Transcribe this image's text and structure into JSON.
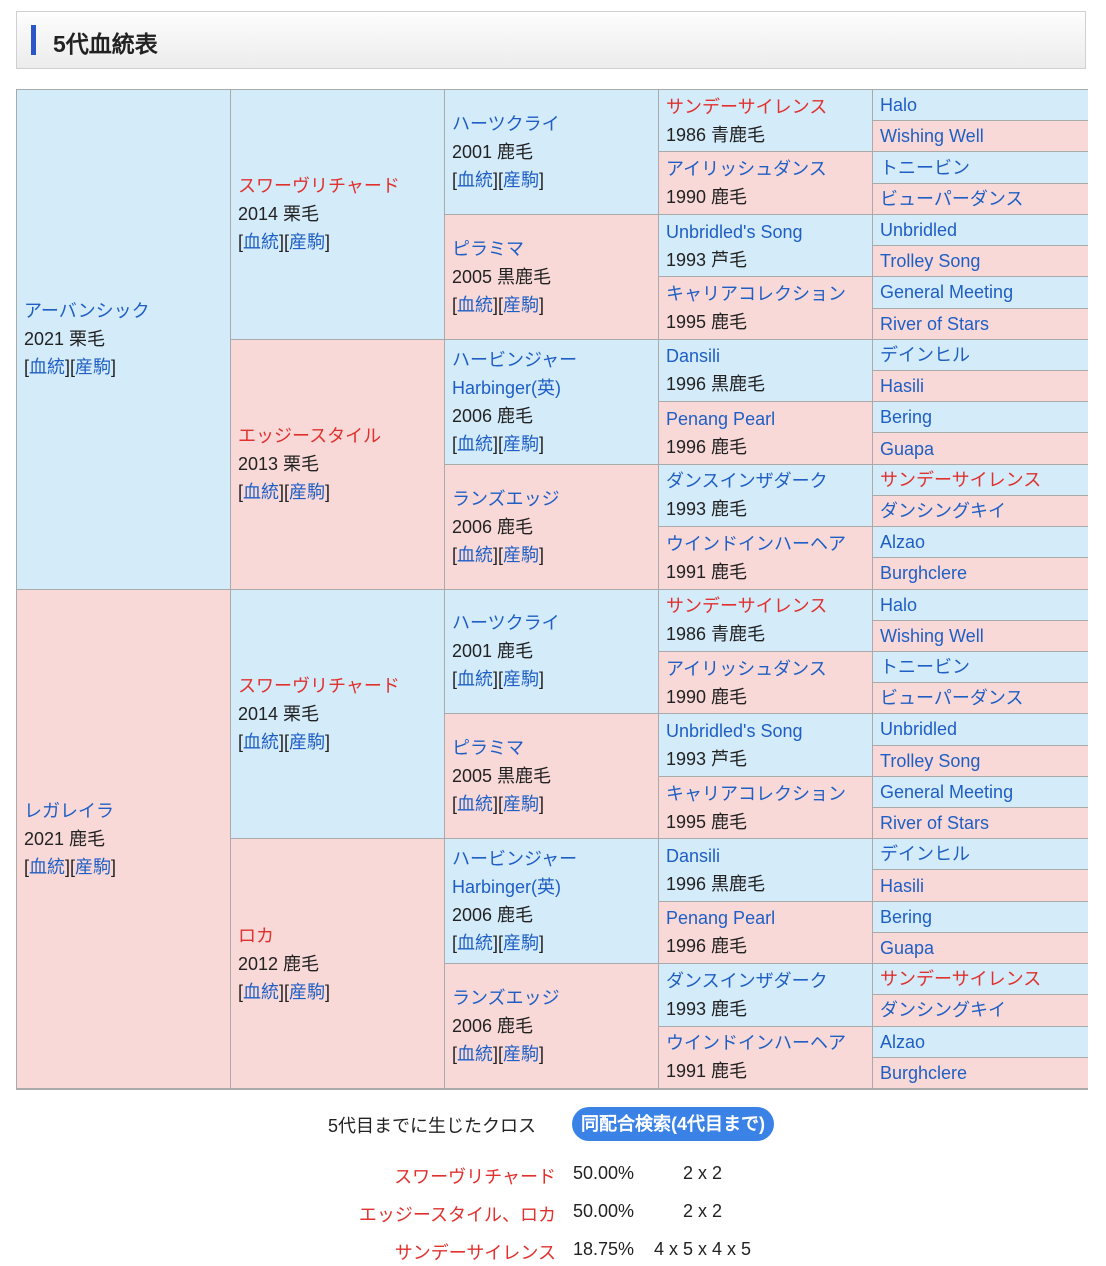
{
  "header": {
    "title": "5代血統表"
  },
  "links": [
    "血統",
    "産駒"
  ],
  "gen1": [
    {
      "name": "アーバンシック",
      "info": "2021 栗毛",
      "sex": "m",
      "color": "blue"
    },
    {
      "name": "レガレイラ",
      "info": "2021 鹿毛",
      "sex": "f",
      "color": "blue"
    }
  ],
  "gen2": [
    {
      "name": "スワーヴリチャード",
      "info": "2014 栗毛",
      "sex": "m",
      "color": "red"
    },
    {
      "name": "エッジースタイル",
      "info": "2013 栗毛",
      "sex": "f",
      "color": "red"
    },
    {
      "name": "スワーヴリチャード",
      "info": "2014 栗毛",
      "sex": "m",
      "color": "red"
    },
    {
      "name": "ロカ",
      "info": "2012 鹿毛",
      "sex": "f",
      "color": "red"
    }
  ],
  "gen3": [
    {
      "name": "ハーツクライ",
      "info": "2001 鹿毛",
      "sex": "m",
      "color": "blue"
    },
    {
      "name": "ピラミマ",
      "info": "2005 黒鹿毛",
      "sex": "f",
      "color": "blue"
    },
    {
      "name": "ハービンジャー",
      "sub": "Harbinger(英)",
      "info": "2006 鹿毛",
      "sex": "m",
      "color": "blue"
    },
    {
      "name": "ランズエッジ",
      "info": "2006 鹿毛",
      "sex": "f",
      "color": "blue"
    },
    {
      "name": "ハーツクライ",
      "info": "2001 鹿毛",
      "sex": "m",
      "color": "blue"
    },
    {
      "name": "ピラミマ",
      "info": "2005 黒鹿毛",
      "sex": "f",
      "color": "blue"
    },
    {
      "name": "ハービンジャー",
      "sub": "Harbinger(英)",
      "info": "2006 鹿毛",
      "sex": "m",
      "color": "blue"
    },
    {
      "name": "ランズエッジ",
      "info": "2006 鹿毛",
      "sex": "f",
      "color": "blue"
    }
  ],
  "gen4": [
    {
      "name": "サンデーサイレンス",
      "info": "1986 青鹿毛",
      "sex": "m",
      "color": "red"
    },
    {
      "name": "アイリッシュダンス",
      "info": "1990 鹿毛",
      "sex": "f",
      "color": "blue"
    },
    {
      "name": "Unbridled's Song",
      "info": "1993 芦毛",
      "sex": "m",
      "color": "blue"
    },
    {
      "name": "キャリアコレクション",
      "info": "1995 鹿毛",
      "sex": "f",
      "color": "blue"
    },
    {
      "name": "Dansili",
      "info": "1996 黒鹿毛",
      "sex": "m",
      "color": "blue"
    },
    {
      "name": "Penang Pearl",
      "info": "1996 鹿毛",
      "sex": "f",
      "color": "blue"
    },
    {
      "name": "ダンスインザダーク",
      "info": "1993 鹿毛",
      "sex": "m",
      "color": "blue"
    },
    {
      "name": "ウインドインハーヘア",
      "info": "1991 鹿毛",
      "sex": "f",
      "color": "blue"
    },
    {
      "name": "サンデーサイレンス",
      "info": "1986 青鹿毛",
      "sex": "m",
      "color": "red"
    },
    {
      "name": "アイリッシュダンス",
      "info": "1990 鹿毛",
      "sex": "f",
      "color": "blue"
    },
    {
      "name": "Unbridled's Song",
      "info": "1993 芦毛",
      "sex": "m",
      "color": "blue"
    },
    {
      "name": "キャリアコレクション",
      "info": "1995 鹿毛",
      "sex": "f",
      "color": "blue"
    },
    {
      "name": "Dansili",
      "info": "1996 黒鹿毛",
      "sex": "m",
      "color": "blue"
    },
    {
      "name": "Penang Pearl",
      "info": "1996 鹿毛",
      "sex": "f",
      "color": "blue"
    },
    {
      "name": "ダンスインザダーク",
      "info": "1993 鹿毛",
      "sex": "m",
      "color": "blue"
    },
    {
      "name": "ウインドインハーヘア",
      "info": "1991 鹿毛",
      "sex": "f",
      "color": "blue"
    }
  ],
  "gen5": [
    {
      "name": "Halo",
      "color": "blue"
    },
    {
      "name": "Wishing Well",
      "color": "blue"
    },
    {
      "name": "トニービン",
      "color": "blue"
    },
    {
      "name": "ビューパーダンス",
      "color": "blue"
    },
    {
      "name": "Unbridled",
      "color": "blue"
    },
    {
      "name": "Trolley Song",
      "color": "blue"
    },
    {
      "name": "General Meeting",
      "color": "blue"
    },
    {
      "name": "River of Stars",
      "color": "blue"
    },
    {
      "name": "デインヒル",
      "color": "blue"
    },
    {
      "name": "Hasili",
      "color": "blue"
    },
    {
      "name": "Bering",
      "color": "blue"
    },
    {
      "name": "Guapa",
      "color": "blue"
    },
    {
      "name": "サンデーサイレンス",
      "color": "red"
    },
    {
      "name": "ダンシングキイ",
      "color": "blue"
    },
    {
      "name": "Alzao",
      "color": "blue"
    },
    {
      "name": "Burghclere",
      "color": "blue"
    },
    {
      "name": "Halo",
      "color": "blue"
    },
    {
      "name": "Wishing Well",
      "color": "blue"
    },
    {
      "name": "トニービン",
      "color": "blue"
    },
    {
      "name": "ビューパーダンス",
      "color": "blue"
    },
    {
      "name": "Unbridled",
      "color": "blue"
    },
    {
      "name": "Trolley Song",
      "color": "blue"
    },
    {
      "name": "General Meeting",
      "color": "blue"
    },
    {
      "name": "River of Stars",
      "color": "blue"
    },
    {
      "name": "デインヒル",
      "color": "blue"
    },
    {
      "name": "Hasili",
      "color": "blue"
    },
    {
      "name": "Bering",
      "color": "blue"
    },
    {
      "name": "Guapa",
      "color": "blue"
    },
    {
      "name": "サンデーサイレンス",
      "color": "red"
    },
    {
      "name": "ダンシングキイ",
      "color": "blue"
    },
    {
      "name": "Alzao",
      "color": "blue"
    },
    {
      "name": "Burghclere",
      "color": "blue"
    }
  ],
  "cross": {
    "label": "5代目までに生じたクロス",
    "button": "同配合検索(4代目まで)",
    "rows": [
      {
        "name": "スワーヴリチャード",
        "pct": "50.00%",
        "pattern": "2 x 2"
      },
      {
        "name": "エッジースタイル、ロカ",
        "pct": "50.00%",
        "pattern": "2 x 2"
      },
      {
        "name": "サンデーサイレンス",
        "pct": "18.75%",
        "pattern": "4 x 5 x 4 x 5"
      }
    ]
  }
}
